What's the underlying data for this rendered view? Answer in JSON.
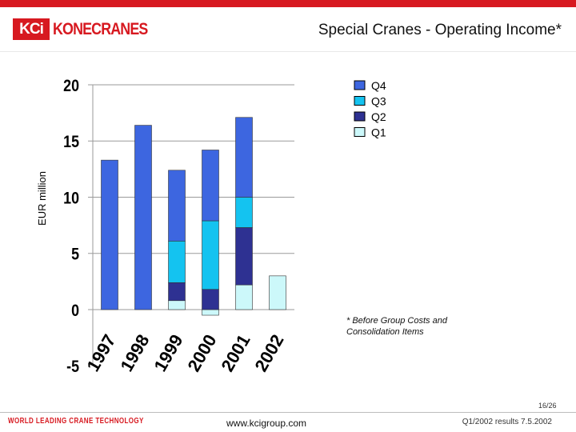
{
  "header": {
    "brand": "KONECRANES",
    "logo_mark": "KCi",
    "title": "Special Cranes - Operating Income*"
  },
  "footnote": "* Before Group Costs and Consolidation Items",
  "footer": {
    "tagline": "WORLD LEADING CRANE TECHNOLOGY",
    "url": "www.kcigroup.com",
    "date": "Q1/2002 results 7.5.2002",
    "page": "16/26"
  },
  "colors": {
    "brand_red": "#d71920",
    "Q4": "#3d66e0",
    "Q3": "#14c3f0",
    "Q2": "#2e3192",
    "Q1": "#ccf8fa"
  },
  "chart_data": {
    "type": "bar",
    "stacked": true,
    "title": "Special Cranes - Operating Income*",
    "ylabel": "EUR million",
    "xlabel": "",
    "ylim": [
      -5,
      20
    ],
    "yticks": [
      -5,
      0,
      5,
      10,
      15,
      20
    ],
    "categories": [
      "1997",
      "1998",
      "1999",
      "2000",
      "2001",
      "2002"
    ],
    "series": [
      {
        "name": "Q1",
        "values": [
          0,
          0,
          0.8,
          -0.5,
          2.2,
          3.0
        ]
      },
      {
        "name": "Q2",
        "values": [
          0,
          0,
          1.6,
          1.8,
          5.1,
          0
        ]
      },
      {
        "name": "Q3",
        "values": [
          0,
          0,
          3.7,
          6.1,
          2.7,
          0
        ]
      },
      {
        "name": "Q4",
        "values": [
          13.3,
          16.4,
          6.3,
          6.3,
          7.1,
          0
        ]
      }
    ],
    "legend": [
      "Q4",
      "Q3",
      "Q2",
      "Q1"
    ],
    "legend_position": "top-right"
  }
}
